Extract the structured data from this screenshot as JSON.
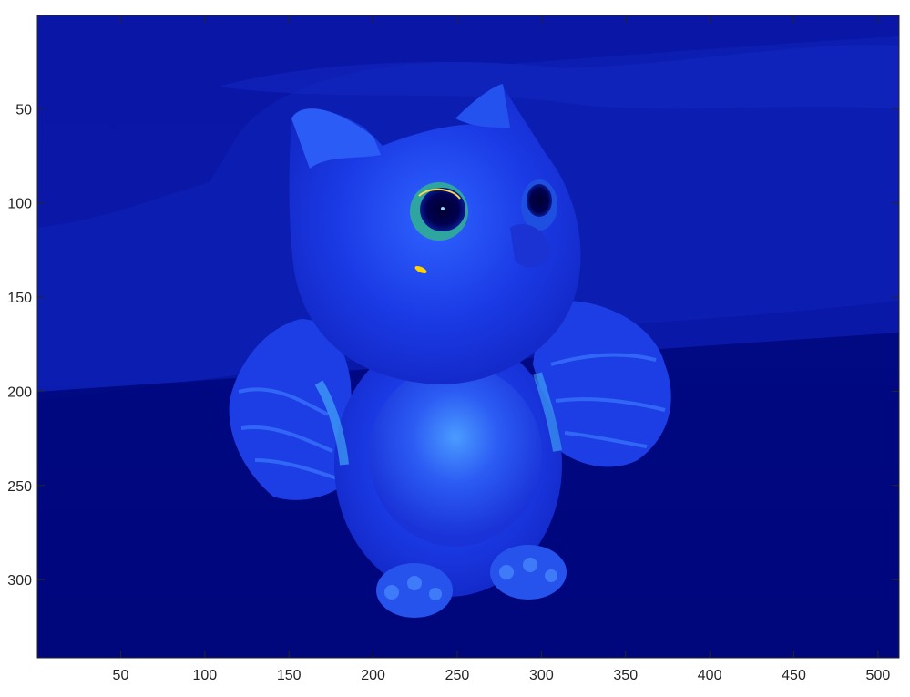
{
  "plot": {
    "xlim": [
      0.5,
      512.5
    ],
    "ylim": [
      0.5,
      341.5
    ],
    "y_direction": "reverse",
    "x_ticks": [
      "50",
      "100",
      "150",
      "200",
      "250",
      "300",
      "350",
      "400",
      "450",
      "500"
    ],
    "y_ticks": [
      "50",
      "100",
      "150",
      "200",
      "250",
      "300"
    ],
    "colormap": "jet"
  },
  "image": {
    "subject": "owl figurine",
    "colors": {
      "background_dark": "#00007a",
      "background_mid": "#0b1bb0",
      "body": "#1a3ae6",
      "highlight": "#3f7bff",
      "eye_ring": "#35a0a0",
      "pupil": "#000040",
      "hot_spot": "#ffd200"
    }
  }
}
